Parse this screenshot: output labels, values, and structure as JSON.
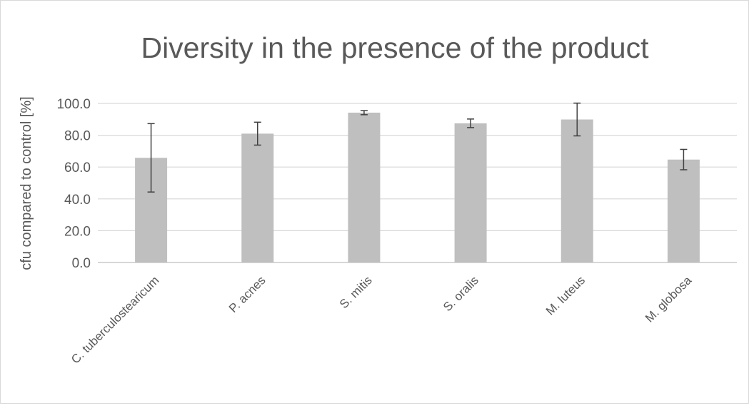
{
  "chart_data": {
    "type": "bar",
    "title": "Diversity in the presence of the product",
    "xlabel": "",
    "ylabel": "cfu compared to control [%]",
    "categories": [
      "C. tuberculostearicum",
      "P. acnes",
      "S. mitis",
      "S. oralis",
      "M. luteus",
      "M. globosa"
    ],
    "values": [
      65.8,
      81.0,
      94.2,
      87.5,
      89.9,
      64.7
    ],
    "error": [
      21.5,
      7.2,
      1.3,
      2.7,
      10.3,
      6.4
    ],
    "ylim": [
      0,
      100
    ],
    "yticks": [
      "0.0",
      "20.0",
      "40.0",
      "60.0",
      "80.0",
      "100.0"
    ],
    "grid": true,
    "legend": "none",
    "colors": {
      "bar": "#bfbfbf",
      "error": "#404040",
      "grid": "#d9d9d9",
      "axis": "#bfbfbf",
      "text": "#595959"
    }
  }
}
